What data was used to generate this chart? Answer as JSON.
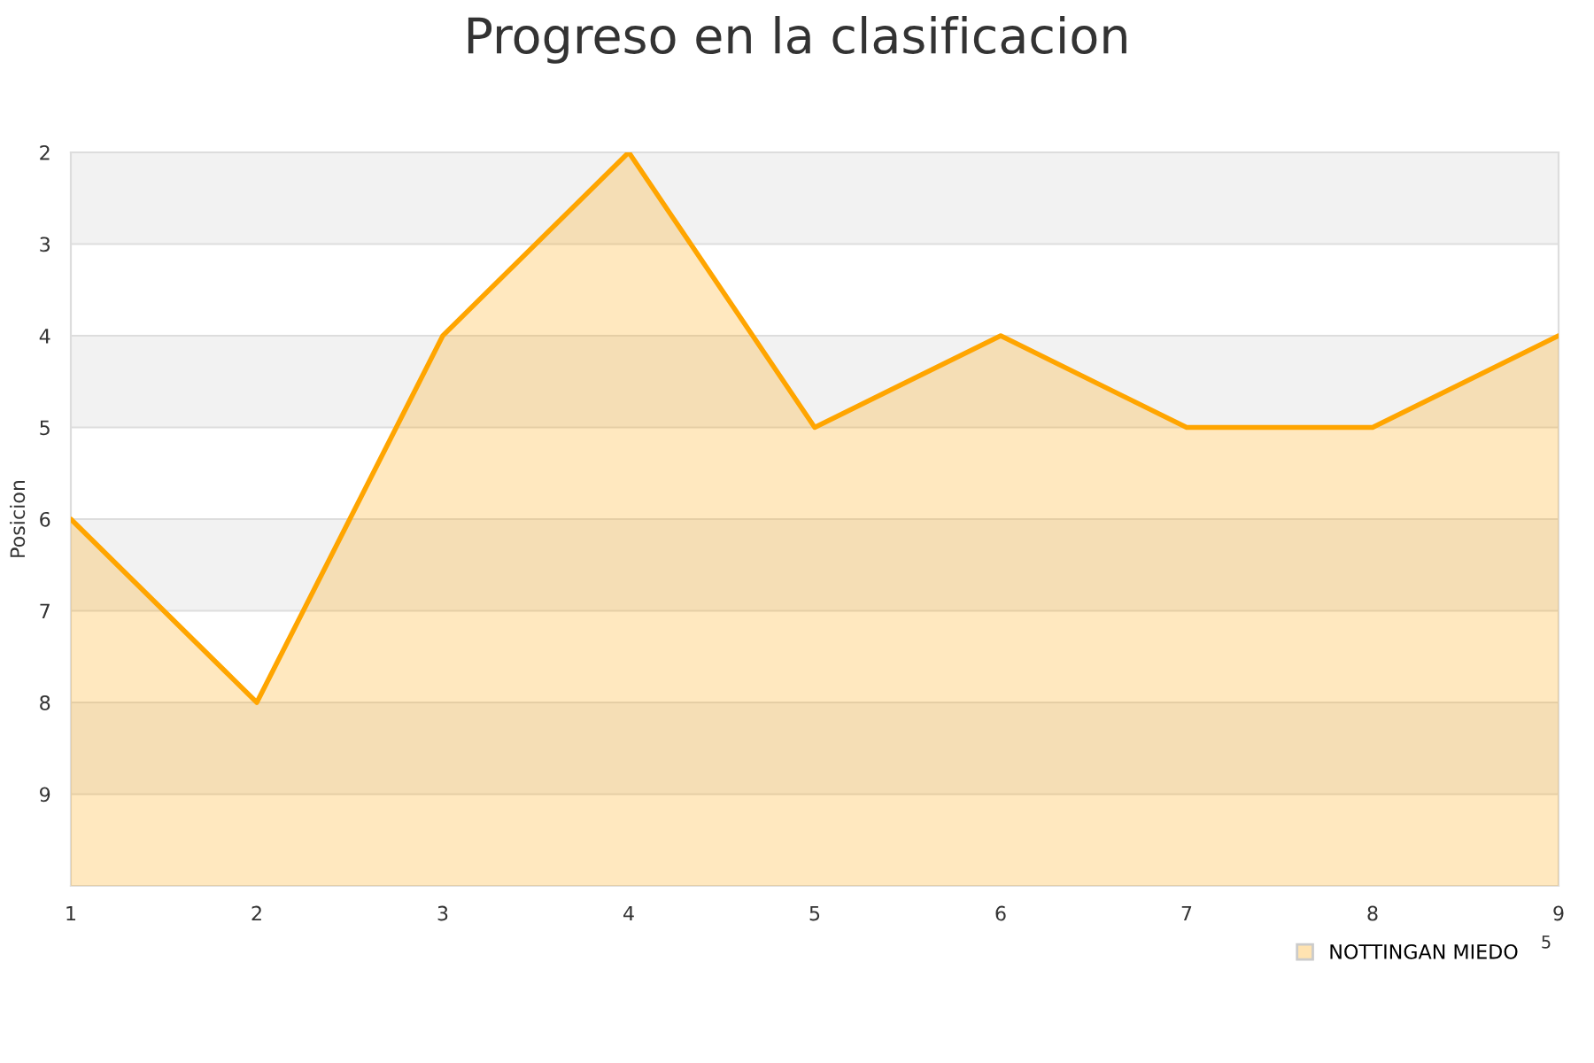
{
  "chart_data": {
    "type": "area",
    "title": "Progreso en la clasificacion",
    "ylabel": "Posicion",
    "x": [
      1,
      2,
      3,
      4,
      5,
      6,
      7,
      8,
      9
    ],
    "series": [
      {
        "name": "NOTTINGAN MIEDO",
        "color": "#ffa500",
        "values": [
          6,
          8,
          4,
          2,
          5,
          4,
          5,
          5,
          4
        ]
      }
    ],
    "xlim": [
      1,
      9
    ],
    "xticks": [
      1,
      2,
      3,
      4,
      5,
      6,
      7,
      8,
      9
    ],
    "ylim": [
      10,
      2
    ],
    "yticks": [
      2,
      3,
      4,
      5,
      6,
      7,
      8,
      9
    ],
    "bands": [
      {
        "axis": "y",
        "from": 2,
        "to": 3,
        "color": "#f2f2f2"
      },
      {
        "axis": "y",
        "from": 4,
        "to": 5,
        "color": "#f2f2f2"
      },
      {
        "axis": "y",
        "from": 6,
        "to": 7,
        "color": "#f2f2f2"
      },
      {
        "axis": "y",
        "from": 8,
        "to": 9,
        "color": "#f2f2f2"
      }
    ],
    "grid": "y",
    "legend": "bottom right",
    "annotations": [
      "5"
    ]
  }
}
